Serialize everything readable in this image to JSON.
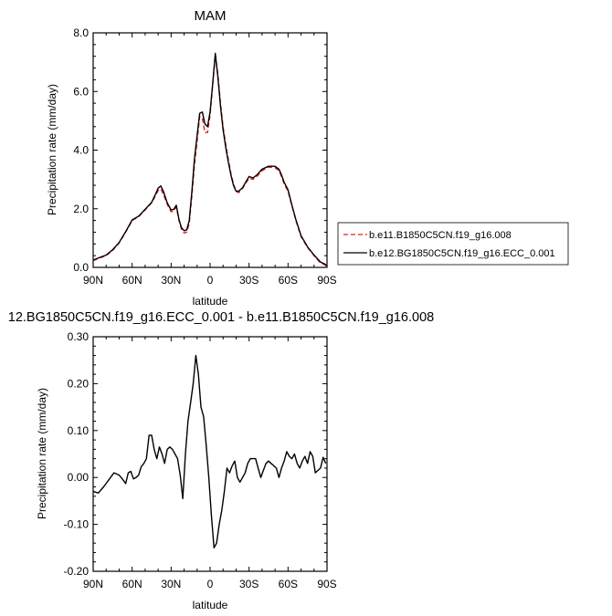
{
  "chart_data": [
    {
      "type": "line",
      "title": "MAM",
      "xlabel": "latitude",
      "ylabel": "Precipitation rate (mm/day)",
      "ylim": [
        0,
        8
      ],
      "yticks": [
        "0.0",
        "2.0",
        "4.0",
        "6.0",
        "8.0"
      ],
      "xlim": [
        90,
        -90
      ],
      "xticks": [
        "90N",
        "60N",
        "30N",
        "0",
        "30S",
        "60S",
        "90S"
      ],
      "legend_position": "right",
      "series": [
        {
          "name": "b.e11.B1850C5CN.f19_g16.008",
          "color": "#e0201b",
          "dash": "dashed",
          "x": [
            90,
            85,
            80,
            75,
            70,
            65,
            60,
            55,
            50,
            45,
            42,
            40,
            38,
            36,
            33,
            30,
            28,
            26,
            24,
            22,
            20,
            18,
            16,
            14,
            12,
            10,
            8,
            6,
            4,
            2,
            0,
            -2,
            -4,
            -6,
            -8,
            -10,
            -12,
            -14,
            -16,
            -18,
            -20,
            -22,
            -25,
            -28,
            -30,
            -33,
            -36,
            -40,
            -45,
            -50,
            -53,
            -55,
            -57,
            -60,
            -63,
            -66,
            -70,
            -75,
            -80,
            -85,
            -88,
            -90
          ],
          "y": [
            0.23,
            0.32,
            0.4,
            0.58,
            0.83,
            1.2,
            1.6,
            1.73,
            1.96,
            2.2,
            2.45,
            2.62,
            2.68,
            2.5,
            2.15,
            1.9,
            1.92,
            2.06,
            1.6,
            1.3,
            1.17,
            1.2,
            1.5,
            2.45,
            3.5,
            4.3,
            5.15,
            5.1,
            4.6,
            4.6,
            5.2,
            6.2,
            7.25,
            6.6,
            5.6,
            4.8,
            4.2,
            3.7,
            3.2,
            2.85,
            2.6,
            2.55,
            2.7,
            2.9,
            3.05,
            3.0,
            3.1,
            3.3,
            3.42,
            3.4,
            3.3,
            3.1,
            2.85,
            2.6,
            2.1,
            1.6,
            1.05,
            0.68,
            0.4,
            0.15,
            0.1,
            0.02
          ]
        },
        {
          "name": "b.e12.BG1850C5CN.f19_g16.ECC_0.001",
          "color": "#000000",
          "dash": "solid",
          "x": [
            90,
            85,
            80,
            75,
            70,
            65,
            60,
            55,
            50,
            45,
            42,
            40,
            38,
            36,
            33,
            30,
            28,
            26,
            24,
            22,
            20,
            18,
            16,
            14,
            12,
            10,
            8,
            6,
            4,
            2,
            0,
            -2,
            -4,
            -6,
            -8,
            -10,
            -12,
            -14,
            -16,
            -18,
            -20,
            -22,
            -25,
            -28,
            -30,
            -33,
            -36,
            -40,
            -45,
            -50,
            -53,
            -55,
            -57,
            -60,
            -63,
            -66,
            -70,
            -75,
            -80,
            -85,
            -88,
            -90
          ],
          "y": [
            0.25,
            0.34,
            0.42,
            0.6,
            0.85,
            1.22,
            1.62,
            1.75,
            1.98,
            2.22,
            2.5,
            2.7,
            2.78,
            2.6,
            2.2,
            1.96,
            1.98,
            2.12,
            1.64,
            1.35,
            1.25,
            1.28,
            1.6,
            2.6,
            3.7,
            4.5,
            5.25,
            5.3,
            4.9,
            4.8,
            5.3,
            6.25,
            7.3,
            6.5,
            5.5,
            4.7,
            4.1,
            3.6,
            3.15,
            2.8,
            2.6,
            2.6,
            2.72,
            2.95,
            3.1,
            3.05,
            3.15,
            3.35,
            3.45,
            3.45,
            3.35,
            3.15,
            2.9,
            2.65,
            2.12,
            1.63,
            1.08,
            0.7,
            0.42,
            0.18,
            0.12,
            0.05
          ]
        }
      ]
    },
    {
      "type": "line",
      "title": "12.BG1850C5CN.f19_g16.ECC_0.001 - b.e11.B1850C5CN.f19_g16.008",
      "xlabel": "latitude",
      "ylabel": "Precipitation rate (mm/day)",
      "ylim": [
        -0.2,
        0.3
      ],
      "yticks": [
        "-0.20",
        "-0.10",
        "0.00",
        "0.10",
        "0.20",
        "0.30"
      ],
      "xlim": [
        90,
        -90
      ],
      "xticks": [
        "90N",
        "60N",
        "30N",
        "0",
        "30S",
        "60S",
        "90S"
      ],
      "series": [
        {
          "color": "#000000",
          "dash": "solid",
          "x": [
            90,
            86,
            82,
            78,
            74,
            70,
            67,
            65,
            63,
            61,
            59,
            57,
            55,
            53,
            51,
            49,
            47,
            45,
            43,
            41,
            39,
            37,
            35,
            33,
            31,
            29,
            27,
            25,
            23,
            21,
            19,
            17,
            15,
            13,
            11,
            9,
            7,
            5,
            3,
            1,
            -1,
            -3,
            -5,
            -7,
            -9,
            -11,
            -13,
            -15,
            -17,
            -19,
            -21,
            -23,
            -25,
            -27,
            -29,
            -31,
            -33,
            -35,
            -37,
            -39,
            -41,
            -43,
            -45,
            -47,
            -49,
            -51,
            -53,
            -55,
            -57,
            -59,
            -61,
            -63,
            -65,
            -67,
            -69,
            -71,
            -73,
            -75,
            -77,
            -79,
            -81,
            -83,
            -85,
            -87,
            -89
          ],
          "y": [
            -0.03,
            -0.033,
            -0.02,
            -0.005,
            0.01,
            0.005,
            -0.005,
            -0.013,
            0.01,
            0.013,
            -0.003,
            0.0,
            0.005,
            0.023,
            0.03,
            0.04,
            0.09,
            0.09,
            0.06,
            0.04,
            0.065,
            0.05,
            0.03,
            0.06,
            0.065,
            0.06,
            0.05,
            0.04,
            0.005,
            -0.045,
            0.05,
            0.12,
            0.16,
            0.2,
            0.26,
            0.22,
            0.15,
            0.13,
            0.07,
            0.0,
            -0.08,
            -0.15,
            -0.14,
            -0.1,
            -0.07,
            -0.03,
            0.02,
            0.01,
            0.025,
            0.035,
            0.0,
            -0.01,
            0.0,
            0.01,
            0.03,
            0.04,
            0.04,
            0.04,
            0.02,
            0.0,
            0.015,
            0.03,
            0.035,
            0.03,
            0.025,
            0.02,
            0.0,
            0.02,
            0.035,
            0.055,
            0.045,
            0.04,
            0.05,
            0.03,
            0.02,
            0.035,
            0.045,
            0.03,
            0.055,
            0.045,
            0.01,
            0.015,
            0.02,
            0.043,
            0.03
          ]
        }
      ]
    }
  ]
}
